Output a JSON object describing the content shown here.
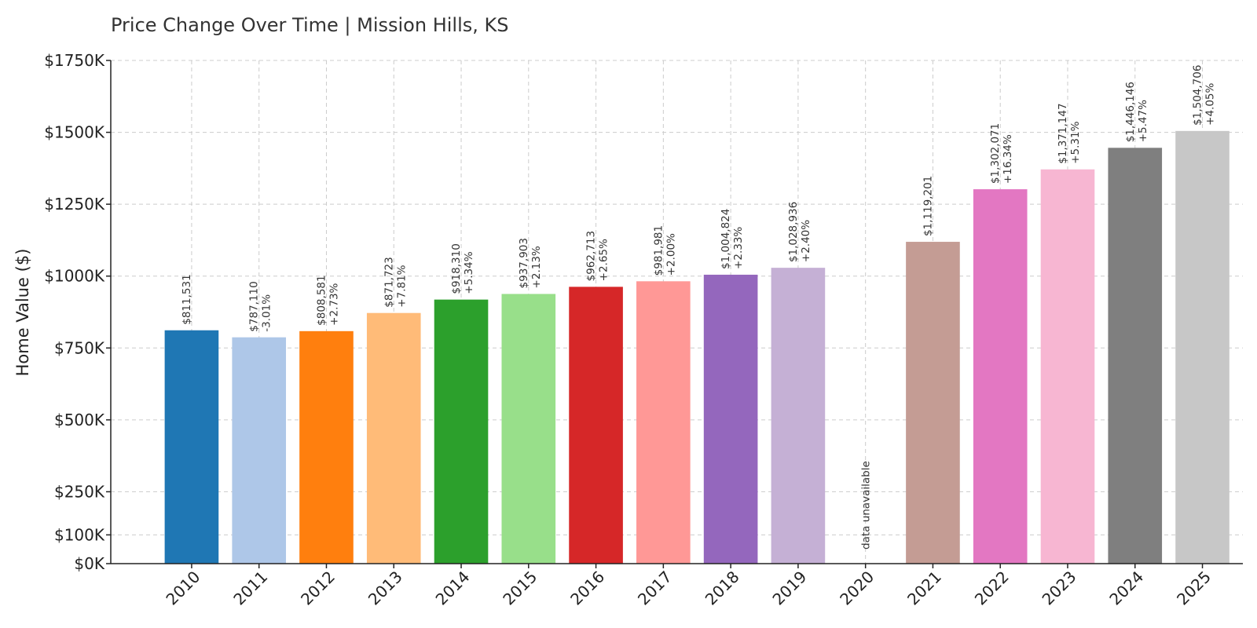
{
  "chart_data": {
    "type": "bar",
    "title": "Price Change Over Time | Mission Hills, KS",
    "xlabel": "",
    "ylabel": "Home Value ($)",
    "ylim": [
      0,
      1750000
    ],
    "yticks": [
      {
        "value": 0,
        "label": "$0K"
      },
      {
        "value": 100000,
        "label": "$100K"
      },
      {
        "value": 250000,
        "label": "$250K"
      },
      {
        "value": 500000,
        "label": "$500K"
      },
      {
        "value": 750000,
        "label": "$750K"
      },
      {
        "value": 1000000,
        "label": "$1000K"
      },
      {
        "value": 1250000,
        "label": "$1250K"
      },
      {
        "value": 1500000,
        "label": "$1500K"
      },
      {
        "value": 1750000,
        "label": "$1750K"
      }
    ],
    "grid": true,
    "categories": [
      "2010",
      "2011",
      "2012",
      "2013",
      "2014",
      "2015",
      "2016",
      "2017",
      "2018",
      "2019",
      "2020",
      "2021",
      "2022",
      "2023",
      "2024",
      "2025"
    ],
    "values": [
      811531,
      787110,
      808581,
      871723,
      918310,
      937903,
      962713,
      981981,
      1004824,
      1028936,
      null,
      1119201,
      1302071,
      1371147,
      1446146,
      1504706
    ],
    "value_labels": [
      "$811,531",
      "$787,110",
      "$808,581",
      "$871,723",
      "$918,310",
      "$937,903",
      "$962,713",
      "$981,981",
      "$1,004,824",
      "$1,028,936",
      "",
      "$1,119,201",
      "$1,302,071",
      "$1,371,147",
      "$1,446,146",
      "$1,504,706"
    ],
    "change_labels": [
      "",
      "-3.01%",
      "+2.73%",
      "+7.81%",
      "+5.34%",
      "+2.13%",
      "+2.65%",
      "+2.00%",
      "+2.33%",
      "+2.40%",
      "",
      "",
      "+16.34%",
      "+5.31%",
      "+5.47%",
      "+4.05%"
    ],
    "missing_label": "data unavailable",
    "colors": [
      "#1f77b4",
      "#aec7e8",
      "#ff7f0e",
      "#ffbb78",
      "#2ca02c",
      "#98df8a",
      "#d62728",
      "#ff9896",
      "#9467bd",
      "#c5b0d5",
      "#8c564b",
      "#c49c94",
      "#e377c2",
      "#f7b6d2",
      "#7f7f7f",
      "#c7c7c7"
    ]
  }
}
